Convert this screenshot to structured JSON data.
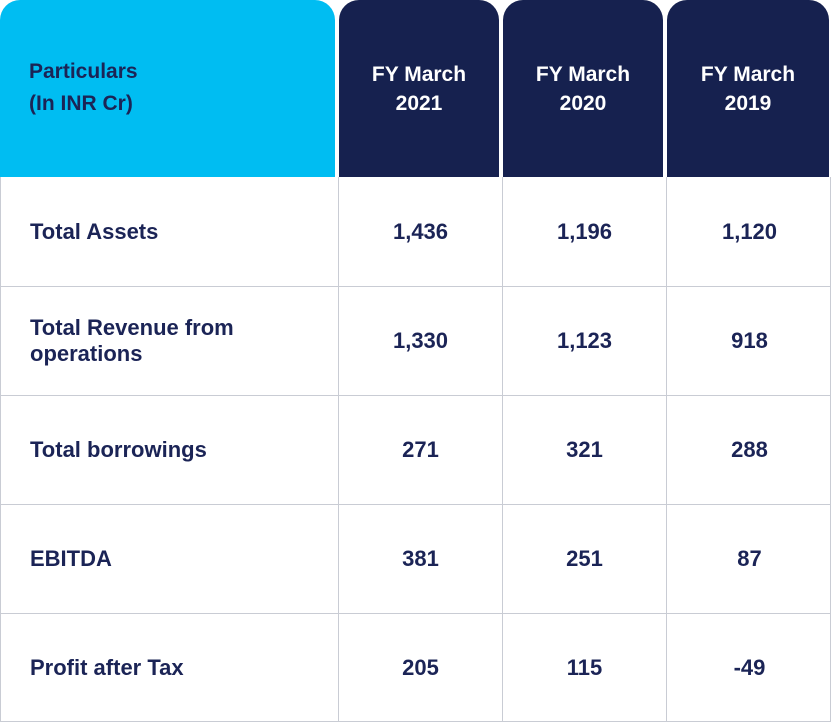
{
  "header": {
    "particulars_line1": "Particulars",
    "particulars_line2": "(In INR Cr)",
    "columns": [
      {
        "line1": "FY March",
        "line2": "2021"
      },
      {
        "line1": "FY March",
        "line2": "2020"
      },
      {
        "line1": "FY March",
        "line2": "2019"
      }
    ]
  },
  "rows": [
    {
      "label": "Total Assets",
      "values": [
        "1,436",
        "1,196",
        "1,120"
      ]
    },
    {
      "label": "Total Revenue from operations",
      "values": [
        "1,330",
        "1,123",
        "918"
      ]
    },
    {
      "label": "Total borrowings",
      "values": [
        "271",
        "321",
        "288"
      ]
    },
    {
      "label": "EBITDA",
      "values": [
        "381",
        "251",
        "87"
      ]
    },
    {
      "label": "Profit after Tax",
      "values": [
        "205",
        "115",
        "-49"
      ]
    }
  ],
  "colors": {
    "particulars_header": "#00bdf2",
    "year_header": "#16214f",
    "text": "#1b2456",
    "grid": "#c9ccd4"
  }
}
